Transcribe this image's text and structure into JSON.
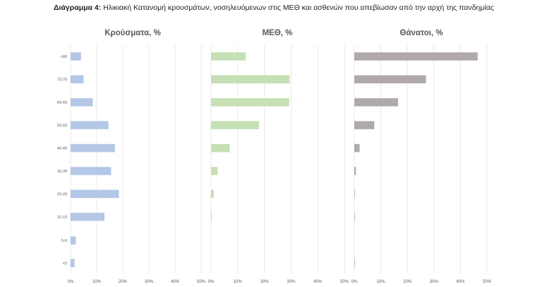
{
  "caption": {
    "label": "Διάγραμμα 4:",
    "text": " Ηλικιακή Κατανομή κρουσμάτων, νοσηλευόμενων στις ΜΕΘ και ασθενών που απεβίωσαν από την αρχή της πανδημίας"
  },
  "chart_data": [
    {
      "type": "bar",
      "orientation": "horizontal",
      "title": "Κρούσματα, %",
      "categories": [
        ">80",
        "70-79",
        "60-69",
        "50-59",
        "40-49",
        "30-39",
        "20-29",
        "10-19",
        "5-9",
        "<5"
      ],
      "values": [
        4,
        5,
        8.5,
        14.5,
        17,
        15.5,
        18.5,
        13,
        2,
        1.5
      ],
      "xlim": [
        0,
        50
      ],
      "ticks": [
        "0%",
        "10%",
        "20%",
        "30%",
        "40%",
        "50%"
      ],
      "color": "#b4c7e7",
      "grid": true
    },
    {
      "type": "bar",
      "orientation": "horizontal",
      "title": "ΜΕΘ, %",
      "categories": [
        ">80",
        "70-79",
        "60-69",
        "50-59",
        "40-49",
        "30-39",
        "20-29",
        "10-19",
        "5-9",
        "<5"
      ],
      "values": [
        13,
        29.5,
        29.3,
        18,
        7,
        2.5,
        1,
        0.3,
        0,
        0
      ],
      "xlim": [
        0,
        50
      ],
      "ticks": [
        "0%",
        "10%",
        "20%",
        "30%",
        "40%",
        "50%"
      ],
      "color": "#c5e0b4",
      "grid": true
    },
    {
      "type": "bar",
      "orientation": "horizontal",
      "title": "Θάνατοι, %",
      "categories": [
        ">80",
        "70-79",
        "60-69",
        "50-59",
        "40-49",
        "30-39",
        "20-29",
        "10-19",
        "5-9",
        "<5"
      ],
      "values": [
        46.5,
        27,
        16.5,
        7.5,
        2,
        0.6,
        0.2,
        0.1,
        0,
        0.05
      ],
      "xlim": [
        0,
        50
      ],
      "ticks": [
        "0%",
        "10%",
        "20%",
        "30%",
        "40%",
        "50%"
      ],
      "color": "#b0a9aa",
      "grid": true
    }
  ]
}
